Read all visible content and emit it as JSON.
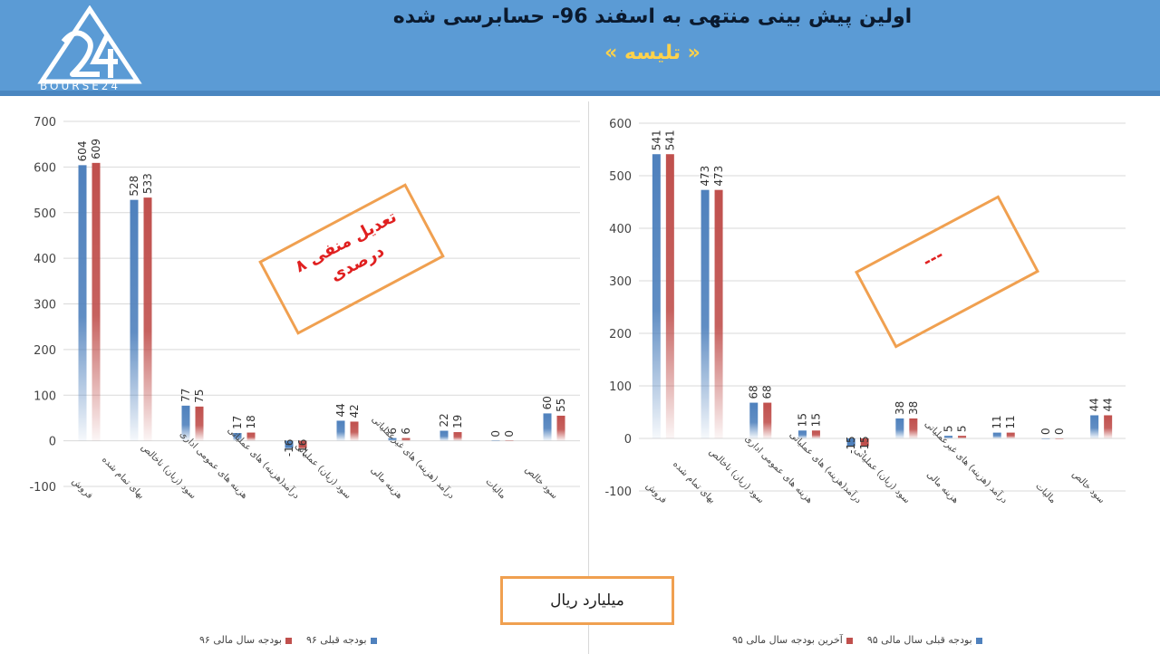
{
  "header": {
    "title": "اولین پیش بینی منتهی به اسفند 96- حسابرسی شده",
    "subtitle": "« تلیسه »",
    "logo_text": "BOURSE24",
    "colors": {
      "band": "#5b9bd5",
      "title": "#0b1a2e",
      "subtitle": "#ffd24a"
    }
  },
  "unit_label": "میلیارد ریال",
  "chart_data": [
    {
      "type": "bar",
      "categories": [
        "فروش",
        "بهای تمام شده",
        "سود (زیان) ناخالص",
        "هزینه های عمومی اداری",
        "درآمد(هزینه) های عملیاتی",
        "سود (زیان) عملیاتی",
        "هزینه مالی",
        "درآمد (هزینه) های غیرعملیاتی",
        "مالیات",
        "سود خالص"
      ],
      "series": [
        {
          "name": "بودجه قبلی ۹۶",
          "color": "#4f81bd",
          "values": [
            604,
            528,
            77,
            17,
            -16,
            44,
            6,
            22,
            0,
            60
          ]
        },
        {
          "name": "بودجه سال مالی ۹۶",
          "color": "#c0504d",
          "values": [
            609,
            533,
            75,
            18,
            -16,
            42,
            6,
            19,
            0,
            55
          ]
        }
      ],
      "ylim": [
        -100,
        700
      ],
      "yticks": [
        -100,
        0,
        100,
        200,
        300,
        400,
        500,
        600,
        700
      ],
      "grid": true,
      "legend": "bottom",
      "annotation": "تعدیل منفی ۸ درصدی"
    },
    {
      "type": "bar",
      "categories": [
        "فروش",
        "بهای تمام شده",
        "سود (زیان) ناخالص",
        "هزینه های عمومی اداری",
        "درآمد(هزینه) های عملیاتی",
        "سود (زیان) عملیاتی",
        "هزینه مالی",
        "درآمد (هزینه) های غیرعملیاتی",
        "مالیات",
        "سود خالص"
      ],
      "series": [
        {
          "name": "بودجه قبلی سال مالی ۹۵",
          "color": "#4f81bd",
          "values": [
            541,
            473,
            68,
            15,
            -15,
            38,
            5,
            11,
            0,
            44
          ]
        },
        {
          "name": "آخرین بودجه سال مالی ۹۵",
          "color": "#c0504d",
          "values": [
            541,
            473,
            68,
            15,
            -15,
            38,
            5,
            11,
            0,
            44
          ]
        }
      ],
      "ylim": [
        -100,
        600
      ],
      "yticks": [
        -100,
        0,
        100,
        200,
        300,
        400,
        500,
        600
      ],
      "grid": true,
      "legend": "bottom",
      "annotation": "---"
    }
  ]
}
